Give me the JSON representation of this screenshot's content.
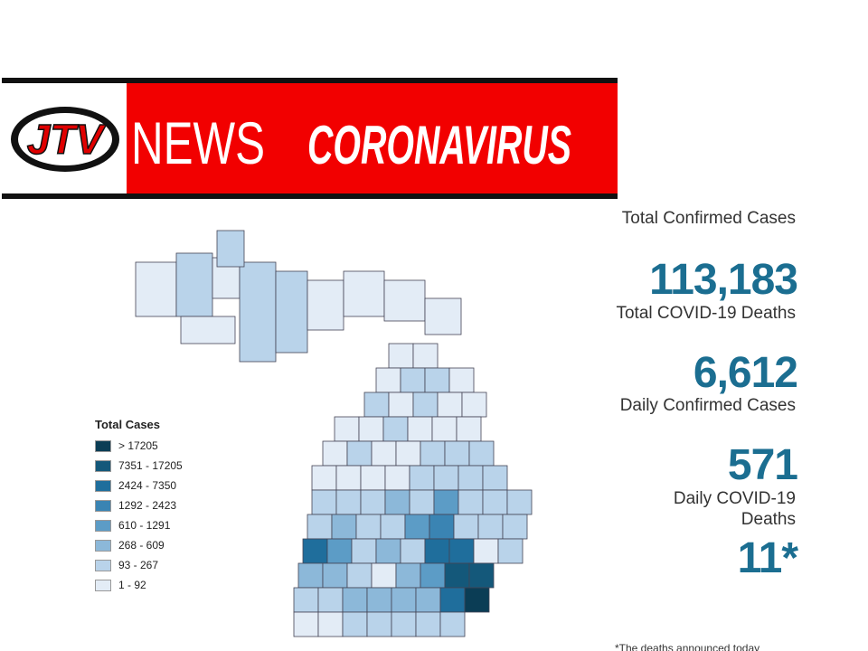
{
  "banner": {
    "logo": "JTV",
    "news": "NEWS",
    "topic": "CORONAVIRUS"
  },
  "legend": {
    "title": "Total Cases",
    "items": [
      {
        "label": "> 17205",
        "color": "#0b3d55"
      },
      {
        "label": "7351 - 17205",
        "color": "#14587a"
      },
      {
        "label": "2424 - 7350",
        "color": "#1f6e9c"
      },
      {
        "label": "1292 - 2423",
        "color": "#3a84b3"
      },
      {
        "label": "610 - 1291",
        "color": "#5c9cc6"
      },
      {
        "label": "268 - 609",
        "color": "#8cb8d9"
      },
      {
        "label": "93 - 267",
        "color": "#b9d3ea"
      },
      {
        "label": "1 - 92",
        "color": "#e3ecf6"
      }
    ]
  },
  "stats": [
    {
      "label": "Total Confirmed Cases",
      "value": "113,183"
    },
    {
      "label": "Total COVID-19 Deaths",
      "value": "6,612"
    },
    {
      "label": "Daily Confirmed Cases",
      "value": "571"
    },
    {
      "label": "Daily COVID-19 Deaths",
      "value": "11*"
    }
  ],
  "footnote": "*The deaths announced today"
}
